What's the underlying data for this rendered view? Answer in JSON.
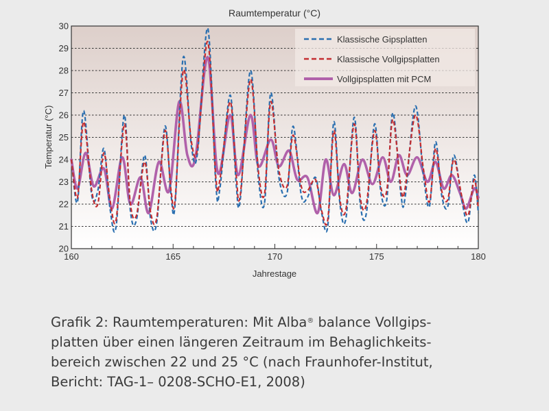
{
  "chart_data": {
    "type": "line",
    "title": "Raumtemperatur (°C)",
    "xlabel": "Jahrestage",
    "ylabel": "Temperatur (°C)",
    "xlim": [
      160,
      180
    ],
    "ylim": [
      20,
      30
    ],
    "x_ticks": [
      160,
      165,
      170,
      175,
      180
    ],
    "y_ticks": [
      20,
      21,
      22,
      23,
      24,
      25,
      26,
      27,
      28,
      29,
      30
    ],
    "grid": "horizontal dotted",
    "legend_position": "top-right",
    "series": [
      {
        "name": "Klassische Gipsplatten",
        "color": "#2a6fb0",
        "style": "dashed",
        "points": [
          [
            160.0,
            24.0
          ],
          [
            160.3,
            22.1
          ],
          [
            160.6,
            26.2
          ],
          [
            161.0,
            22.4
          ],
          [
            161.3,
            22.6
          ],
          [
            161.6,
            24.5
          ],
          [
            161.9,
            21.8
          ],
          [
            162.2,
            21.0
          ],
          [
            162.6,
            26.0
          ],
          [
            162.9,
            21.7
          ],
          [
            163.2,
            21.3
          ],
          [
            163.6,
            24.2
          ],
          [
            163.9,
            21.3
          ],
          [
            164.2,
            21.2
          ],
          [
            164.6,
            25.5
          ],
          [
            164.9,
            22.4
          ],
          [
            165.1,
            22.0
          ],
          [
            165.5,
            28.6
          ],
          [
            165.9,
            24.6
          ],
          [
            166.2,
            24.3
          ],
          [
            166.7,
            29.9
          ],
          [
            167.1,
            22.9
          ],
          [
            167.3,
            22.7
          ],
          [
            167.8,
            26.9
          ],
          [
            168.1,
            22.9
          ],
          [
            168.3,
            22.2
          ],
          [
            168.8,
            28.0
          ],
          [
            169.2,
            23.1
          ],
          [
            169.5,
            22.1
          ],
          [
            169.8,
            27.0
          ],
          [
            170.2,
            23.2
          ],
          [
            170.6,
            22.5
          ],
          [
            170.9,
            25.5
          ],
          [
            171.3,
            22.4
          ],
          [
            171.6,
            22.3
          ],
          [
            172.0,
            23.2
          ],
          [
            172.3,
            21.6
          ],
          [
            172.6,
            21.0
          ],
          [
            172.9,
            25.7
          ],
          [
            173.2,
            22.0
          ],
          [
            173.5,
            21.4
          ],
          [
            173.9,
            25.9
          ],
          [
            174.2,
            22.0
          ],
          [
            174.5,
            21.6
          ],
          [
            174.9,
            25.6
          ],
          [
            175.2,
            22.6
          ],
          [
            175.5,
            22.2
          ],
          [
            175.8,
            26.1
          ],
          [
            176.2,
            22.4
          ],
          [
            176.4,
            22.3
          ],
          [
            176.9,
            26.4
          ],
          [
            177.3,
            23.3
          ],
          [
            177.6,
            21.9
          ],
          [
            177.9,
            24.8
          ],
          [
            178.2,
            22.4
          ],
          [
            178.5,
            21.9
          ],
          [
            178.8,
            24.2
          ],
          [
            179.2,
            22.1
          ],
          [
            179.5,
            21.2
          ],
          [
            179.8,
            23.3
          ],
          [
            180.0,
            21.6
          ]
        ]
      },
      {
        "name": "Klassische Vollgipsplatten",
        "color": "#c42d30",
        "style": "dashed",
        "points": [
          [
            160.0,
            24.0
          ],
          [
            160.3,
            22.3
          ],
          [
            160.6,
            25.7
          ],
          [
            161.0,
            22.6
          ],
          [
            161.3,
            22.0
          ],
          [
            161.6,
            24.3
          ],
          [
            161.9,
            22.2
          ],
          [
            162.2,
            21.3
          ],
          [
            162.6,
            25.6
          ],
          [
            162.9,
            22.0
          ],
          [
            163.2,
            21.5
          ],
          [
            163.6,
            23.9
          ],
          [
            163.9,
            21.6
          ],
          [
            164.2,
            21.4
          ],
          [
            164.6,
            25.3
          ],
          [
            164.9,
            22.6
          ],
          [
            165.1,
            22.2
          ],
          [
            165.5,
            28.0
          ],
          [
            165.9,
            24.8
          ],
          [
            166.2,
            24.5
          ],
          [
            166.7,
            29.3
          ],
          [
            167.1,
            23.2
          ],
          [
            167.3,
            23.1
          ],
          [
            167.8,
            26.6
          ],
          [
            168.1,
            23.3
          ],
          [
            168.3,
            22.4
          ],
          [
            168.8,
            27.6
          ],
          [
            169.2,
            23.4
          ],
          [
            169.5,
            22.5
          ],
          [
            169.8,
            26.6
          ],
          [
            170.2,
            23.5
          ],
          [
            170.6,
            22.8
          ],
          [
            170.9,
            25.1
          ],
          [
            171.3,
            22.8
          ],
          [
            171.6,
            22.6
          ],
          [
            172.0,
            23.1
          ],
          [
            172.3,
            21.7
          ],
          [
            172.6,
            21.3
          ],
          [
            172.9,
            25.3
          ],
          [
            173.2,
            22.2
          ],
          [
            173.5,
            21.8
          ],
          [
            173.9,
            25.6
          ],
          [
            174.2,
            22.3
          ],
          [
            174.5,
            22.0
          ],
          [
            174.9,
            25.3
          ],
          [
            175.2,
            22.8
          ],
          [
            175.5,
            22.6
          ],
          [
            175.8,
            25.8
          ],
          [
            176.2,
            22.7
          ],
          [
            176.4,
            22.7
          ],
          [
            176.9,
            26.0
          ],
          [
            177.3,
            23.6
          ],
          [
            177.6,
            22.1
          ],
          [
            177.9,
            24.5
          ],
          [
            178.2,
            22.6
          ],
          [
            178.5,
            22.2
          ],
          [
            178.8,
            24.0
          ],
          [
            179.2,
            22.3
          ],
          [
            179.5,
            21.5
          ],
          [
            179.8,
            23.1
          ],
          [
            180.0,
            21.8
          ]
        ]
      },
      {
        "name": "Vollgipsplatten mit PCM",
        "color": "#b061aa",
        "style": "solid",
        "points": [
          [
            160.0,
            24.0
          ],
          [
            160.3,
            22.7
          ],
          [
            160.7,
            24.3
          ],
          [
            161.1,
            22.8
          ],
          [
            161.6,
            23.6
          ],
          [
            162.0,
            21.8
          ],
          [
            162.5,
            24.1
          ],
          [
            162.9,
            22.0
          ],
          [
            163.4,
            23.2
          ],
          [
            163.8,
            21.6
          ],
          [
            164.3,
            23.9
          ],
          [
            164.8,
            22.6
          ],
          [
            165.3,
            26.6
          ],
          [
            165.7,
            24.2
          ],
          [
            166.1,
            24.1
          ],
          [
            166.7,
            28.6
          ],
          [
            167.2,
            23.4
          ],
          [
            167.8,
            26.0
          ],
          [
            168.2,
            23.3
          ],
          [
            168.8,
            26.0
          ],
          [
            169.2,
            23.7
          ],
          [
            169.8,
            24.9
          ],
          [
            170.2,
            23.7
          ],
          [
            170.7,
            24.4
          ],
          [
            171.1,
            23.1
          ],
          [
            171.6,
            23.2
          ],
          [
            172.1,
            21.6
          ],
          [
            172.5,
            24.0
          ],
          [
            172.9,
            22.4
          ],
          [
            173.4,
            23.8
          ],
          [
            173.8,
            22.5
          ],
          [
            174.3,
            24.0
          ],
          [
            174.8,
            22.9
          ],
          [
            175.3,
            24.1
          ],
          [
            175.7,
            23.0
          ],
          [
            176.1,
            24.2
          ],
          [
            176.5,
            23.3
          ],
          [
            177.0,
            24.1
          ],
          [
            177.5,
            23.0
          ],
          [
            177.9,
            23.9
          ],
          [
            178.3,
            22.7
          ],
          [
            178.7,
            23.3
          ],
          [
            179.1,
            22.5
          ],
          [
            179.4,
            21.8
          ],
          [
            179.8,
            22.7
          ],
          [
            180.0,
            22.3
          ]
        ]
      }
    ]
  },
  "caption": {
    "line1_a": "Grafik 2: Raumtemperaturen: Mit Alba",
    "line1_reg": "®",
    "line1_b": " balance Vollgips-",
    "line2": "platten über einen längeren Zeitraum im Behaglichkeits-",
    "line3": "bereich zwischen 22 und 25 °C (nach Fraunhofer-Institut,",
    "line4": "Bericht: TAG-1– 0208-SCHO-E1, 2008)"
  },
  "colors": {
    "page_background": "#ebebeb",
    "plot_gradient_top": "#ddcfca",
    "plot_gradient_bottom": "#ffffff",
    "grid": "#333333",
    "text": "#333333"
  }
}
